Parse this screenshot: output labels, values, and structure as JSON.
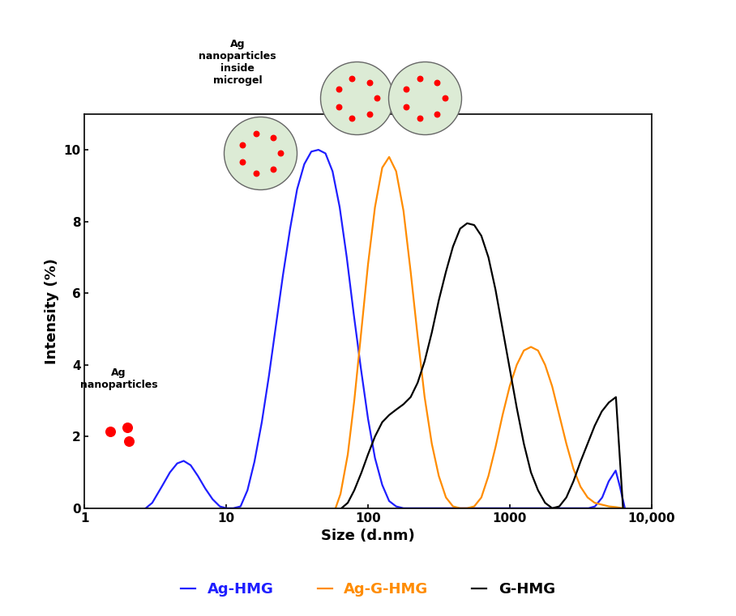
{
  "chart_data": {
    "type": "line",
    "x_label": "Size (d.nm)",
    "y_label": "Intensity (%)",
    "log": "x",
    "xlim": [
      1,
      10000
    ],
    "xticks": [
      1,
      10,
      100,
      1000,
      {
        "value": 10000,
        "label": "10,000"
      }
    ],
    "ylim": [
      0,
      11
    ],
    "yticks": [
      0,
      2,
      4,
      6,
      8,
      10
    ],
    "grid": false,
    "legend": "lower center",
    "annotations": [
      "Ag\nnanoparticles\ninside\nmicrogel",
      "Ag\nnanoparticles"
    ],
    "series": [
      {
        "name": "Ag-HMG",
        "color": "#1f1fff",
        "x": [
          2.7,
          3.0,
          3.5,
          4.0,
          4.5,
          5.0,
          5.6,
          6.3,
          7.1,
          8,
          9,
          10,
          11.2,
          12.6,
          14.1,
          15.8,
          17.8,
          20,
          22.4,
          25.1,
          28.2,
          31.6,
          35.5,
          39.8,
          44.7,
          50.1,
          56.2,
          63.1,
          70.8,
          79.4,
          89.1,
          100,
          112,
          126,
          141,
          158,
          178,
          3600,
          4000,
          4500,
          5000,
          5600,
          6000,
          6500
        ],
        "values": [
          0,
          0.15,
          0.6,
          1.0,
          1.25,
          1.32,
          1.2,
          0.9,
          0.55,
          0.25,
          0.05,
          0,
          0,
          0.05,
          0.5,
          1.3,
          2.4,
          3.7,
          5.1,
          6.5,
          7.8,
          8.9,
          9.6,
          9.95,
          10.0,
          9.9,
          9.4,
          8.4,
          7.0,
          5.4,
          3.9,
          2.5,
          1.4,
          0.65,
          0.2,
          0.05,
          0,
          0,
          0.05,
          0.3,
          0.75,
          1.05,
          0.6,
          0
        ]
      },
      {
        "name": "Ag-G-HMG",
        "color": "#ff8c00",
        "x": [
          59,
          64,
          72,
          80,
          90,
          100,
          112,
          126,
          141,
          158,
          178,
          200,
          224,
          251,
          282,
          316,
          355,
          398,
          447,
          500,
          562,
          631,
          708,
          794,
          891,
          1000,
          1122,
          1259,
          1413,
          1585,
          1778,
          1995,
          2239,
          2512,
          2818,
          3162,
          3548,
          3981,
          4467,
          5012,
          5623,
          6310
        ],
        "values": [
          0,
          0.4,
          1.5,
          3,
          5,
          6.8,
          8.4,
          9.5,
          9.8,
          9.4,
          8.3,
          6.6,
          4.8,
          3.1,
          1.8,
          0.9,
          0.3,
          0.05,
          0,
          0,
          0.05,
          0.3,
          0.9,
          1.7,
          2.6,
          3.4,
          4.0,
          4.4,
          4.5,
          4.4,
          4.0,
          3.4,
          2.6,
          1.8,
          1.1,
          0.6,
          0.3,
          0.15,
          0.1,
          0.05,
          0.03,
          0
        ]
      },
      {
        "name": "G-HMG",
        "color": "#000000",
        "x": [
          65,
          72,
          80,
          90,
          100,
          112,
          126,
          141,
          158,
          178,
          200,
          224,
          251,
          282,
          316,
          355,
          398,
          447,
          501,
          562,
          631,
          708,
          794,
          891,
          1000,
          1122,
          1259,
          1413,
          1585,
          1778,
          1995,
          2239,
          2512,
          2818,
          3162,
          3548,
          3981,
          4467,
          5012,
          5623,
          6310
        ],
        "values": [
          0,
          0.15,
          0.5,
          1.0,
          1.5,
          2.0,
          2.4,
          2.6,
          2.75,
          2.9,
          3.1,
          3.5,
          4.1,
          4.9,
          5.8,
          6.6,
          7.3,
          7.8,
          7.95,
          7.9,
          7.6,
          7.0,
          6.1,
          5.0,
          3.9,
          2.8,
          1.8,
          1.0,
          0.5,
          0.15,
          0,
          0.05,
          0.3,
          0.75,
          1.3,
          1.8,
          2.3,
          2.7,
          2.95,
          3.1,
          0
        ]
      }
    ]
  }
}
